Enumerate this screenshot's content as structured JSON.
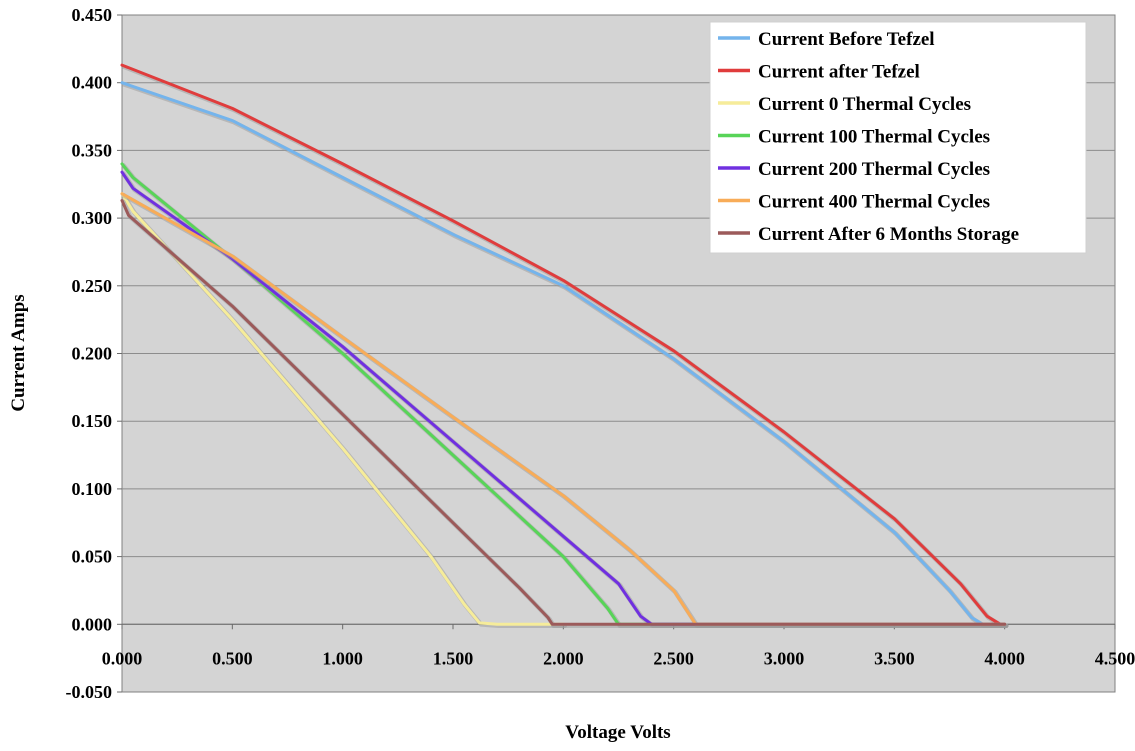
{
  "chart_data": {
    "type": "line",
    "title": "",
    "xlabel": "Voltage Volts",
    "ylabel": "Current Amps",
    "xlim": [
      0,
      4.5
    ],
    "ylim": [
      -0.05,
      0.45
    ],
    "x_ticks": [
      "0.000",
      "0.500",
      "1.000",
      "1.500",
      "2.000",
      "2.500",
      "3.000",
      "3.500",
      "4.000",
      "4.500"
    ],
    "x_tick_values": [
      0,
      0.5,
      1.0,
      1.5,
      2.0,
      2.5,
      3.0,
      3.5,
      4.0,
      4.5
    ],
    "y_ticks": [
      "-0.050",
      "0.000",
      "0.050",
      "0.100",
      "0.150",
      "0.200",
      "0.250",
      "0.300",
      "0.350",
      "0.400",
      "0.450"
    ],
    "y_tick_values": [
      -0.05,
      0,
      0.05,
      0.1,
      0.15,
      0.2,
      0.25,
      0.3,
      0.35,
      0.4,
      0.45
    ],
    "grid": "horizontal",
    "legend_position": "top-right",
    "plot_background": "#d4d4d4",
    "series": [
      {
        "name": "Current Before Tefzel",
        "color": "#74b4ec",
        "points": [
          [
            0,
            0.4
          ],
          [
            0.5,
            0.372
          ],
          [
            1.0,
            0.33
          ],
          [
            1.5,
            0.288
          ],
          [
            2.0,
            0.25
          ],
          [
            2.5,
            0.196
          ],
          [
            3.0,
            0.135
          ],
          [
            3.5,
            0.068
          ],
          [
            3.75,
            0.025
          ],
          [
            3.85,
            0.005
          ],
          [
            3.9,
            0.0
          ],
          [
            4.0,
            0.0
          ]
        ]
      },
      {
        "name": "Current after Tefzel",
        "color": "#e03c3c",
        "points": [
          [
            0,
            0.413
          ],
          [
            0.5,
            0.381
          ],
          [
            1.0,
            0.34
          ],
          [
            1.5,
            0.298
          ],
          [
            2.0,
            0.254
          ],
          [
            2.5,
            0.202
          ],
          [
            3.0,
            0.142
          ],
          [
            3.5,
            0.078
          ],
          [
            3.8,
            0.03
          ],
          [
            3.92,
            0.006
          ],
          [
            3.98,
            0.0
          ],
          [
            4.0,
            0.0
          ]
        ]
      },
      {
        "name": "Current 0 Thermal Cycles",
        "color": "#f6ec9a",
        "points": [
          [
            0,
            0.318
          ],
          [
            0.05,
            0.305
          ],
          [
            0.5,
            0.225
          ],
          [
            1.0,
            0.13
          ],
          [
            1.4,
            0.05
          ],
          [
            1.55,
            0.015
          ],
          [
            1.62,
            0.001
          ],
          [
            1.7,
            0.0
          ],
          [
            2.0,
            0.0
          ]
        ]
      },
      {
        "name": "Current 100 Thermal Cycles",
        "color": "#58d458",
        "points": [
          [
            0,
            0.34
          ],
          [
            0.05,
            0.33
          ],
          [
            0.5,
            0.27
          ],
          [
            1.0,
            0.2
          ],
          [
            1.5,
            0.125
          ],
          [
            2.0,
            0.05
          ],
          [
            2.2,
            0.012
          ],
          [
            2.25,
            0.0
          ],
          [
            4.0,
            0.0
          ]
        ]
      },
      {
        "name": "Current 200 Thermal Cycles",
        "color": "#7030e0",
        "points": [
          [
            0,
            0.334
          ],
          [
            0.05,
            0.322
          ],
          [
            0.5,
            0.27
          ],
          [
            1.0,
            0.205
          ],
          [
            1.5,
            0.135
          ],
          [
            2.0,
            0.065
          ],
          [
            2.25,
            0.03
          ],
          [
            2.35,
            0.006
          ],
          [
            2.4,
            0.0
          ],
          [
            4.0,
            0.0
          ]
        ]
      },
      {
        "name": "Current 400 Thermal Cycles",
        "color": "#f8ac58",
        "points": [
          [
            0,
            0.318
          ],
          [
            0.5,
            0.272
          ],
          [
            1.0,
            0.212
          ],
          [
            1.5,
            0.153
          ],
          [
            2.0,
            0.095
          ],
          [
            2.3,
            0.055
          ],
          [
            2.5,
            0.025
          ],
          [
            2.58,
            0.005
          ],
          [
            2.6,
            0.0
          ],
          [
            4.0,
            0.0
          ]
        ]
      },
      {
        "name": "Current After 6 Months Storage",
        "color": "#9c5a5a",
        "points": [
          [
            0,
            0.313
          ],
          [
            0.03,
            0.302
          ],
          [
            0.5,
            0.235
          ],
          [
            1.0,
            0.155
          ],
          [
            1.5,
            0.075
          ],
          [
            1.8,
            0.027
          ],
          [
            1.93,
            0.005
          ],
          [
            1.95,
            0.0
          ],
          [
            4.0,
            0.0
          ]
        ]
      }
    ]
  }
}
